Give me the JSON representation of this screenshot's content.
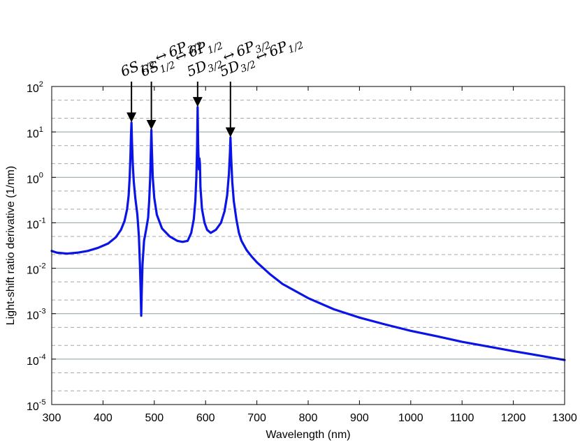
{
  "chart_data": {
    "type": "line",
    "xlabel": "Wavelength (nm)",
    "ylabel": "Light-shift ratio derivative (1/nm)",
    "xlim": [
      300,
      1300
    ],
    "ylim": [
      1e-05,
      100
    ],
    "yscale": "log",
    "grid": "major solid, minor dashed",
    "line_color": "#0a14e6",
    "x_ticks": [
      "300",
      "400",
      "500",
      "600",
      "700",
      "800",
      "900",
      "1000",
      "1100",
      "1200",
      "1300"
    ],
    "y_ticks": [
      {
        "base": "10",
        "exp": "-5"
      },
      {
        "base": "10",
        "exp": "-4"
      },
      {
        "base": "10",
        "exp": "-3"
      },
      {
        "base": "10",
        "exp": "-2"
      },
      {
        "base": "10",
        "exp": "-1"
      },
      {
        "base": "10",
        "exp": "0"
      },
      {
        "base": "10",
        "exp": "1"
      },
      {
        "base": "10",
        "exp": "2"
      }
    ],
    "series": [
      {
        "values": [
          [
            300,
            0.024
          ],
          [
            310,
            0.022
          ],
          [
            330,
            0.021
          ],
          [
            350,
            0.022
          ],
          [
            370,
            0.024
          ],
          [
            390,
            0.028
          ],
          [
            410,
            0.035
          ],
          [
            425,
            0.048
          ],
          [
            435,
            0.07
          ],
          [
            442,
            0.11
          ],
          [
            447,
            0.2
          ],
          [
            450,
            0.4
          ],
          [
            452,
            1.0
          ],
          [
            453.5,
            3.0
          ],
          [
            454.5,
            8.0
          ],
          [
            455.5,
            16
          ],
          [
            456.5,
            6
          ],
          [
            458,
            2.0
          ],
          [
            460,
            0.8
          ],
          [
            463,
            0.35
          ],
          [
            467,
            0.15
          ],
          [
            470,
            0.05
          ],
          [
            472,
            0.012
          ],
          [
            473.5,
            0.003
          ],
          [
            474.5,
            0.0009
          ],
          [
            475.5,
            0.003
          ],
          [
            477,
            0.012
          ],
          [
            480,
            0.04
          ],
          [
            484,
            0.07
          ],
          [
            488,
            0.13
          ],
          [
            490,
            0.3
          ],
          [
            492,
            1.0
          ],
          [
            493.3,
            4.0
          ],
          [
            494.3,
            11
          ],
          [
            495.3,
            4.0
          ],
          [
            497,
            1.0
          ],
          [
            500,
            0.35
          ],
          [
            505,
            0.15
          ],
          [
            515,
            0.075
          ],
          [
            530,
            0.05
          ],
          [
            545,
            0.04
          ],
          [
            555,
            0.038
          ],
          [
            565,
            0.04
          ],
          [
            572,
            0.06
          ],
          [
            577,
            0.12
          ],
          [
            580,
            0.3
          ],
          [
            582,
            1.0
          ],
          [
            583.5,
            5.0
          ],
          [
            584.5,
            35
          ],
          [
            585.5,
            5.0
          ],
          [
            587,
            1.5
          ],
          [
            588,
            2.6
          ],
          [
            589,
            2.0
          ],
          [
            590,
            0.6
          ],
          [
            593,
            0.2
          ],
          [
            598,
            0.1
          ],
          [
            603,
            0.07
          ],
          [
            610,
            0.06
          ],
          [
            620,
            0.07
          ],
          [
            630,
            0.1
          ],
          [
            637,
            0.18
          ],
          [
            642,
            0.4
          ],
          [
            645.5,
            1.2
          ],
          [
            647.5,
            3.5
          ],
          [
            648.5,
            7.5
          ],
          [
            650,
            2.5
          ],
          [
            652,
            0.8
          ],
          [
            655,
            0.3
          ],
          [
            660,
            0.12
          ],
          [
            665,
            0.06
          ],
          [
            670,
            0.04
          ],
          [
            680,
            0.025
          ],
          [
            690,
            0.018
          ],
          [
            700,
            0.0135
          ],
          [
            725,
            0.0075
          ],
          [
            750,
            0.0045
          ],
          [
            800,
            0.0022
          ],
          [
            850,
            0.00125
          ],
          [
            900,
            0.00082
          ],
          [
            950,
            0.00058
          ],
          [
            1000,
            0.00042
          ],
          [
            1050,
            0.00032
          ],
          [
            1100,
            0.00024
          ],
          [
            1150,
            0.00019
          ],
          [
            1200,
            0.00015
          ],
          [
            1250,
            0.00012
          ],
          [
            1300,
            9.55e-05
          ]
        ]
      }
    ],
    "annotations": [
      {
        "x": 455.5,
        "y": 16,
        "label": {
          "base": "6S",
          "sub1": "1/2",
          "arrow": "↔",
          "base2": "6P",
          "sub2": "3/2"
        }
      },
      {
        "x": 494.3,
        "y": 11,
        "label": {
          "base": "6S",
          "sub1": "1/2",
          "arrow": "↔",
          "base2": "6P",
          "sub2": "1/2"
        }
      },
      {
        "x": 584.5,
        "y": 35,
        "label": {
          "base": "5D",
          "sub1": "3/2",
          "arrow": "↔",
          "base2": "6P",
          "sub2": "3/2"
        }
      },
      {
        "x": 648.5,
        "y": 7.5,
        "label": {
          "base": "5D",
          "sub1": "3/2",
          "arrow": "↔",
          "base2": "6P",
          "sub2": "1/2"
        }
      }
    ]
  }
}
